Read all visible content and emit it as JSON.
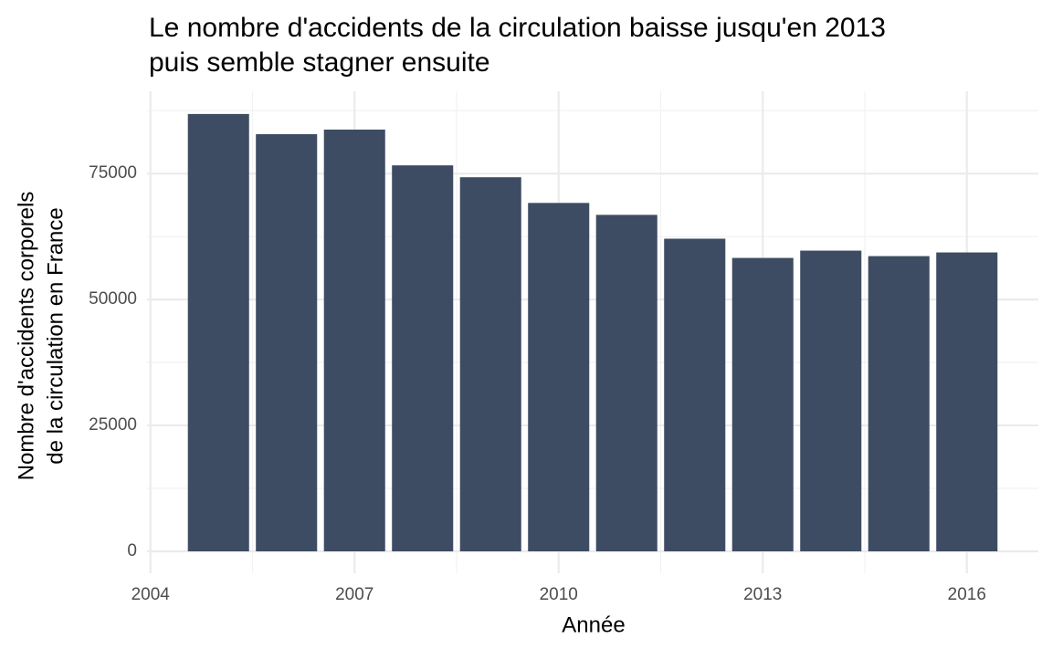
{
  "chart_data": {
    "type": "bar",
    "title": [
      "Le nombre d'accidents de la circulation baisse jusqu'en 2013",
      "puis semble stagner ensuite"
    ],
    "x_label": "Année",
    "y_label": [
      "Nombre d'accidents corporels",
      "de la circulation en France"
    ],
    "x": [
      2005,
      2006,
      2007,
      2008,
      2009,
      2010,
      2011,
      2012,
      2013,
      2014,
      2015,
      2016
    ],
    "values": [
      86840,
      82830,
      83740,
      76640,
      74280,
      69180,
      66810,
      62080,
      58260,
      59710,
      58620,
      59350
    ],
    "color": "#3e4c63",
    "xlim": [
      2003.95,
      2017.05
    ],
    "xticks": [
      2004,
      2007,
      2010,
      2013,
      2016
    ],
    "ylim": [
      -4350,
      91350
    ],
    "yticks": [
      0,
      25000,
      50000,
      75000
    ],
    "grid": true
  }
}
